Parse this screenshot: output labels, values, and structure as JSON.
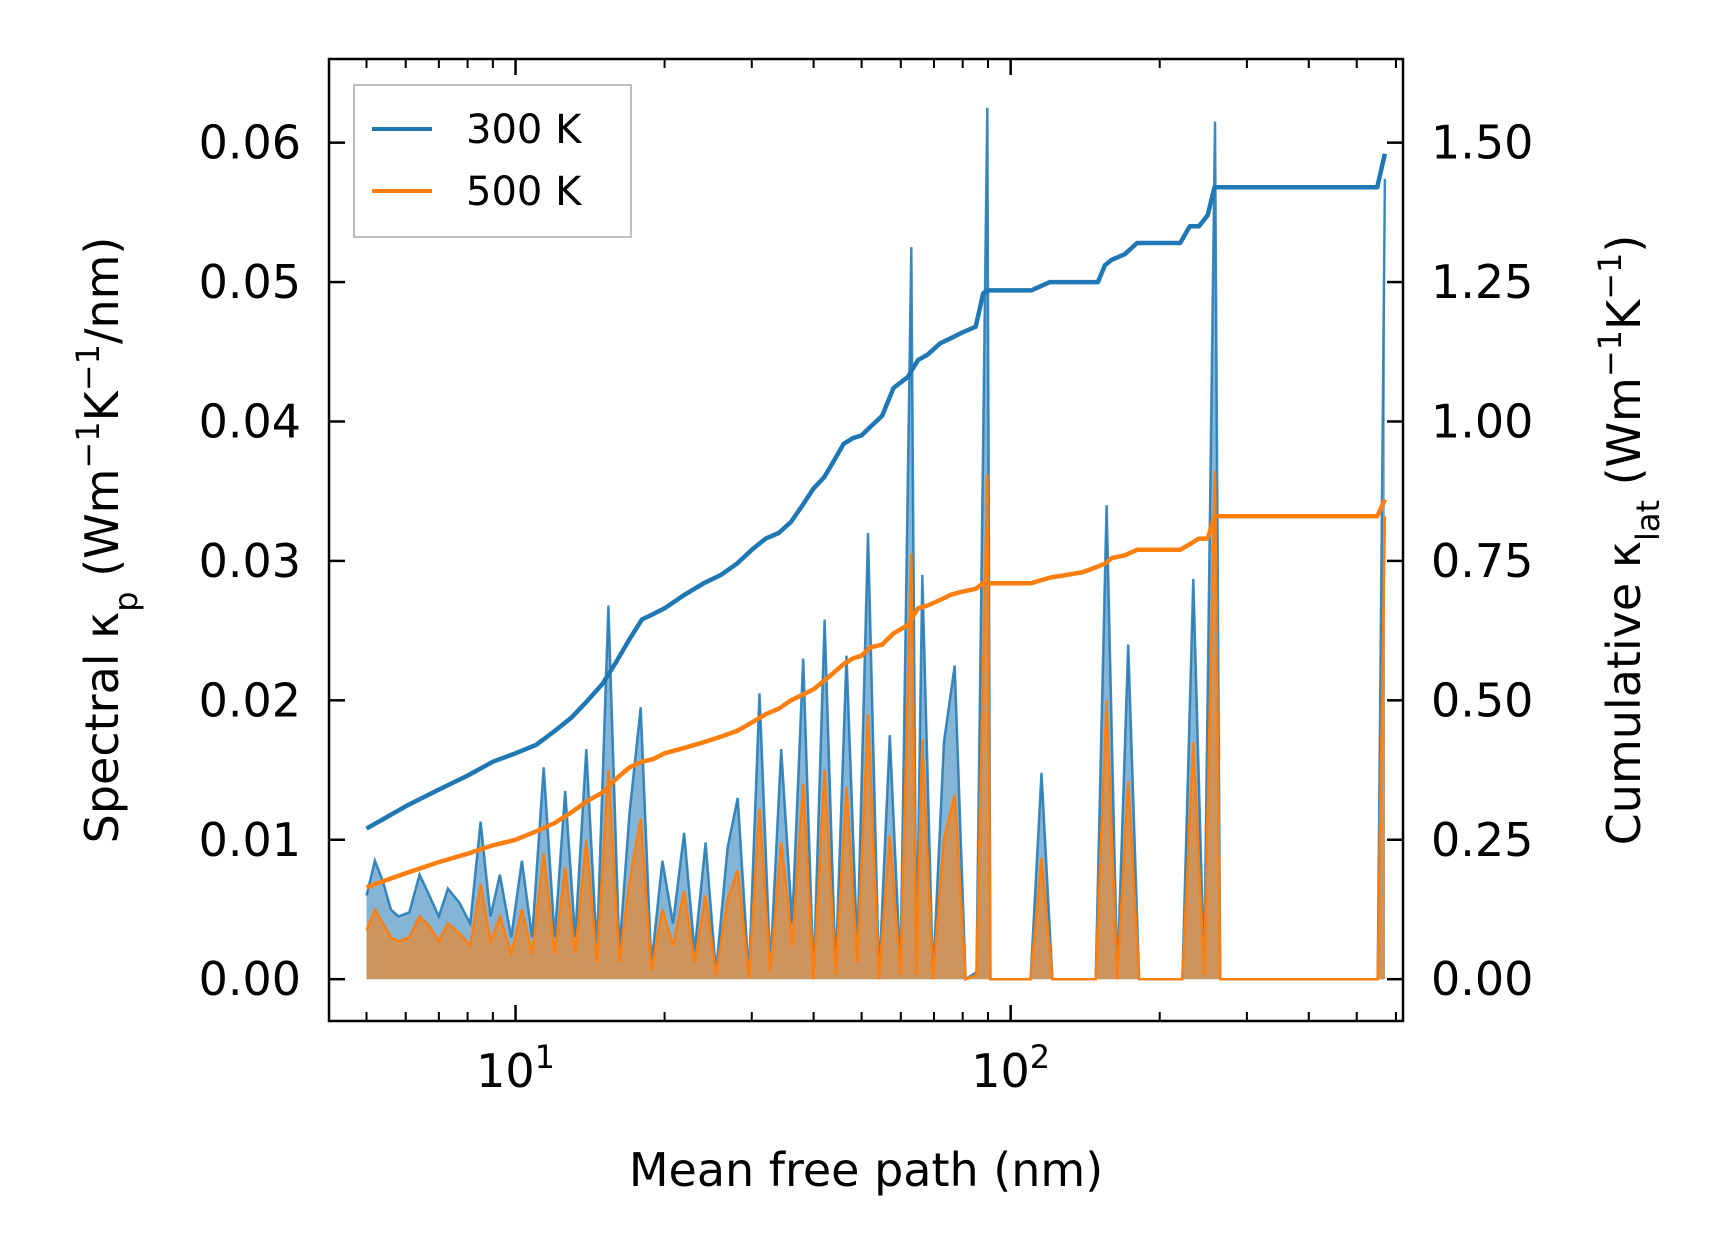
{
  "chart_data": {
    "type": "line",
    "xscale": "log",
    "xlabel": "Mean free path (nm)",
    "ylabel_left": {
      "base": "Spectral κ",
      "sub": "p",
      "unit_prefix": " (Wm",
      "exp1": "−1",
      "unit_mid": "K",
      "exp2": "−1",
      "unit_suffix": "/nm)"
    },
    "ylabel_right": {
      "base": "Cumulative κ",
      "sub": "lat",
      "unit_prefix": " (Wm",
      "exp1": "−1",
      "unit_mid": "K",
      "exp2": "−1",
      "unit_suffix": ")"
    },
    "xlim": [
      4.2,
      620
    ],
    "ylim_left": [
      -0.003,
      0.066
    ],
    "ylim_right": [
      -0.075,
      1.65
    ],
    "xticks_major": [
      {
        "value": 10,
        "base": "10",
        "exp": "1"
      },
      {
        "value": 100,
        "base": "10",
        "exp": "2"
      }
    ],
    "xticks_minor": [
      5,
      6,
      7,
      8,
      9,
      20,
      30,
      40,
      50,
      60,
      70,
      80,
      90,
      200,
      300,
      400,
      500,
      600
    ],
    "yticks_left": [
      "0.00",
      "0.01",
      "0.02",
      "0.03",
      "0.04",
      "0.05",
      "0.06"
    ],
    "yticks_right": [
      "0.00",
      "0.25",
      "0.50",
      "0.75",
      "1.00",
      "1.25",
      "1.50"
    ],
    "legend": {
      "position": "top-left",
      "entries": [
        {
          "label": "300 K",
          "color": "#1f77b4"
        },
        {
          "label": "500 K",
          "color": "#ff7f0e"
        }
      ]
    },
    "colors": {
      "t300": "#1f77b4",
      "t500": "#ff7f0e",
      "fill300": "#1f77b4",
      "fill500": "#ff7f0e"
    },
    "spectral": {
      "x": [
        5.0,
        5.2,
        5.4,
        5.6,
        5.8,
        6.1,
        6.4,
        6.7,
        7.0,
        7.3,
        7.7,
        8.1,
        8.5,
        8.9,
        9.3,
        9.8,
        10.3,
        10.8,
        11.4,
        12.0,
        12.6,
        13.2,
        13.9,
        14.6,
        15.4,
        16.2,
        17.0,
        17.9,
        18.8,
        19.8,
        20.8,
        21.9,
        23.0,
        24.2,
        25.4,
        26.8,
        28.1,
        29.6,
        31.1,
        32.7,
        34.4,
        36.2,
        38.1,
        40.0,
        42.1,
        44.3,
        46.6,
        49.0,
        51.5,
        54.2,
        57.0,
        59.9,
        63.0,
        64.5,
        66.3,
        69.7,
        73.3,
        77.1,
        81.1,
        85.3,
        89.7,
        91.0,
        94.3,
        99.2,
        104.3,
        109.7,
        115.4,
        121.4,
        127.6,
        134.2,
        141.2,
        148.5,
        156.2,
        164.2,
        172.7,
        181.7,
        191.1,
        201.0,
        211.4,
        222.3,
        233.8,
        245.9,
        258.6,
        265.0,
        272.0,
        286.1,
        300.9,
        316.4,
        332.8,
        350.0,
        368.1,
        387.2,
        407.2,
        428.3,
        450.4,
        473.7,
        498.2,
        524.0,
        551.1,
        570.0
      ],
      "y300": [
        0.006,
        0.0085,
        0.007,
        0.005,
        0.0045,
        0.0048,
        0.0075,
        0.006,
        0.0045,
        0.0065,
        0.0055,
        0.004,
        0.0113,
        0.0045,
        0.0075,
        0.003,
        0.0085,
        0.003,
        0.0152,
        0.003,
        0.0135,
        0.003,
        0.0165,
        0.002,
        0.0268,
        0.002,
        0.012,
        0.0195,
        0.001,
        0.0085,
        0.004,
        0.0105,
        0.002,
        0.0098,
        0.0005,
        0.0094,
        0.013,
        0.0002,
        0.0205,
        0.0008,
        0.0165,
        0.004,
        0.023,
        0.0,
        0.0258,
        0.0005,
        0.0232,
        0.002,
        0.032,
        0.0,
        0.0175,
        0.0005,
        0.0525,
        0.0005,
        0.029,
        0.0,
        0.017,
        0.0225,
        0.0,
        0.0005,
        0.0625,
        0.0,
        0.0,
        0.0,
        0.0,
        0.0,
        0.0148,
        0.0,
        0.0,
        0.0,
        0.0,
        0.0,
        0.034,
        0.0,
        0.024,
        0.0,
        0.0,
        0.0,
        0.0,
        0.0,
        0.0287,
        0.0005,
        0.0615,
        0.0,
        0.0,
        0.0,
        0.0,
        0.0,
        0.0,
        0.0,
        0.0,
        0.0,
        0.0,
        0.0,
        0.0,
        0.0,
        0.0,
        0.0,
        0.0,
        0.0574
      ],
      "y500": [
        0.0035,
        0.005,
        0.004,
        0.003,
        0.0027,
        0.003,
        0.0045,
        0.0038,
        0.0027,
        0.004,
        0.0033,
        0.0024,
        0.0068,
        0.0027,
        0.0045,
        0.0018,
        0.005,
        0.0018,
        0.009,
        0.0018,
        0.008,
        0.0018,
        0.01,
        0.0012,
        0.015,
        0.0012,
        0.007,
        0.0115,
        0.0006,
        0.005,
        0.0024,
        0.0063,
        0.0012,
        0.006,
        0.0003,
        0.0057,
        0.0078,
        0.0001,
        0.0122,
        0.0005,
        0.0098,
        0.0024,
        0.014,
        0.0,
        0.015,
        0.0003,
        0.0138,
        0.0012,
        0.019,
        0.0,
        0.0103,
        0.0003,
        0.0305,
        0.0003,
        0.0172,
        0.0,
        0.01,
        0.0132,
        0.0,
        0.0003,
        0.0362,
        0.0,
        0.0,
        0.0,
        0.0,
        0.0,
        0.0087,
        0.0,
        0.0,
        0.0,
        0.0,
        0.0,
        0.02,
        0.0,
        0.0142,
        0.0,
        0.0,
        0.0,
        0.0,
        0.0,
        0.017,
        0.0003,
        0.0365,
        0.0,
        0.0,
        0.0,
        0.0,
        0.0,
        0.0,
        0.0,
        0.0,
        0.0,
        0.0,
        0.0,
        0.0,
        0.0,
        0.0,
        0.0,
        0.0,
        0.0332
      ]
    },
    "cumulative": {
      "x": [
        5.0,
        6.0,
        7.0,
        8.0,
        9.0,
        10.0,
        11.0,
        12.0,
        13.0,
        14.0,
        15.0,
        16.0,
        17.0,
        18.0,
        19.0,
        20.0,
        22.0,
        24.0,
        26.0,
        28.0,
        30.0,
        32.0,
        34.0,
        36.0,
        38.0,
        40.0,
        42.0,
        44.0,
        46.0,
        48.0,
        50.0,
        52.0,
        55.0,
        58.0,
        62.0,
        65.0,
        68.0,
        72.0,
        76.0,
        80.0,
        85.0,
        88.0,
        90.0,
        95.0,
        100.0,
        110.0,
        120.0,
        130.0,
        140.0,
        150.0,
        155.0,
        160.0,
        170.0,
        180.0,
        190.0,
        200.0,
        210.0,
        220.0,
        230.0,
        240.0,
        250.0,
        258.0,
        265.0,
        300.0,
        400.0,
        500.0,
        550.0,
        570.0
      ],
      "y300": [
        0.27,
        0.31,
        0.34,
        0.365,
        0.39,
        0.405,
        0.42,
        0.445,
        0.47,
        0.5,
        0.53,
        0.57,
        0.61,
        0.645,
        0.655,
        0.665,
        0.69,
        0.71,
        0.725,
        0.745,
        0.77,
        0.79,
        0.8,
        0.82,
        0.85,
        0.88,
        0.9,
        0.93,
        0.96,
        0.97,
        0.975,
        0.99,
        1.01,
        1.06,
        1.08,
        1.11,
        1.12,
        1.14,
        1.15,
        1.16,
        1.17,
        1.23,
        1.235,
        1.235,
        1.235,
        1.235,
        1.25,
        1.25,
        1.25,
        1.25,
        1.28,
        1.29,
        1.3,
        1.32,
        1.32,
        1.32,
        1.32,
        1.32,
        1.35,
        1.35,
        1.37,
        1.42,
        1.42,
        1.42,
        1.42,
        1.42,
        1.42,
        1.48
      ],
      "y500": [
        0.165,
        0.19,
        0.21,
        0.225,
        0.24,
        0.25,
        0.265,
        0.28,
        0.3,
        0.32,
        0.335,
        0.36,
        0.38,
        0.39,
        0.395,
        0.405,
        0.415,
        0.425,
        0.435,
        0.445,
        0.46,
        0.475,
        0.485,
        0.5,
        0.51,
        0.52,
        0.535,
        0.55,
        0.565,
        0.575,
        0.58,
        0.595,
        0.6,
        0.62,
        0.635,
        0.665,
        0.67,
        0.68,
        0.69,
        0.695,
        0.7,
        0.71,
        0.71,
        0.71,
        0.71,
        0.71,
        0.72,
        0.725,
        0.73,
        0.74,
        0.745,
        0.755,
        0.76,
        0.77,
        0.77,
        0.77,
        0.77,
        0.77,
        0.78,
        0.79,
        0.79,
        0.83,
        0.83,
        0.83,
        0.83,
        0.83,
        0.83,
        0.86
      ]
    }
  }
}
